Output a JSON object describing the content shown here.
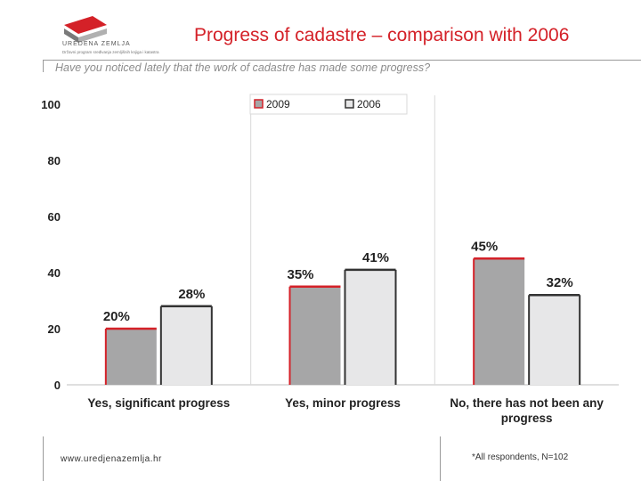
{
  "header": {
    "title": "Progress of cadastre – comparison with 2006",
    "question": "Have you noticed lately that the work of cadastre has made some progress?",
    "logo_text": "UREDENA ZEMLJA",
    "logo_subtext": "Državni program sređivanja zemljišnih knjiga i katastra"
  },
  "footer": {
    "url": "www.uredjenazemlja.hr",
    "note": "*All respondents, N=102"
  },
  "colors": {
    "accent": "#d42128",
    "bar_2009": "#a6a6a7",
    "bar_2006": "#e7e7e8",
    "bar_2006_border": "#333333"
  },
  "chart_data": {
    "type": "bar",
    "categories": [
      [
        "Yes, significant progress"
      ],
      [
        "Yes, minor progress"
      ],
      [
        "No, there has not been any",
        "progress"
      ]
    ],
    "series": [
      {
        "name": "2009",
        "values": [
          20,
          35,
          45
        ],
        "labels": [
          "20%",
          "35%",
          "45%"
        ]
      },
      {
        "name": "2006",
        "values": [
          28,
          41,
          32
        ],
        "labels": [
          "28%",
          "41%",
          "32%"
        ]
      }
    ],
    "yticks": [
      "0",
      "20",
      "40",
      "60",
      "80",
      "100"
    ],
    "ylim": [
      0,
      100
    ],
    "grid": "vertical separators",
    "legend": "top-center"
  }
}
